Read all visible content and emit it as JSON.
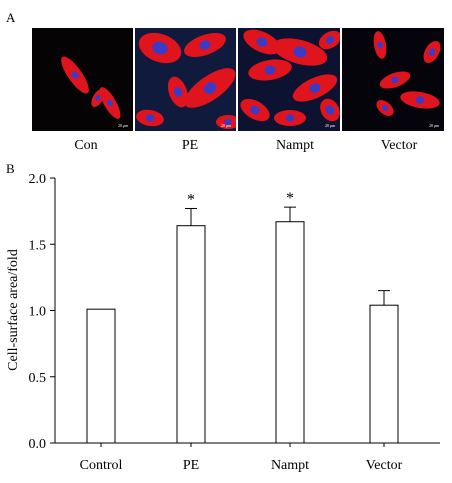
{
  "panel_a": {
    "label": "A",
    "scale_bar_text": "20 μm",
    "images": [
      {
        "caption": "Con",
        "background": "#050303",
        "cell_color": "#e0141c",
        "nucleus_color": "#3a3cc8"
      },
      {
        "caption": "PE",
        "background": "#101a3c",
        "cell_color": "#e0141c",
        "nucleus_color": "#3a3cc8"
      },
      {
        "caption": "Nampt",
        "background": "#0c1230",
        "cell_color": "#e0141c",
        "nucleus_color": "#3a3cc8"
      },
      {
        "caption": "Vector",
        "background": "#05040a",
        "cell_color": "#e0141c",
        "nucleus_color": "#3a3cc8"
      }
    ]
  },
  "panel_b": {
    "label": "B"
  },
  "chart_data": {
    "type": "bar",
    "categories": [
      "Control",
      "PE",
      "Nampt",
      "Vector"
    ],
    "values": [
      1.01,
      1.64,
      1.67,
      1.04
    ],
    "errors": [
      0,
      0.13,
      0.11,
      0.11
    ],
    "significance": [
      "",
      "*",
      "*",
      ""
    ],
    "ylabel": "Cell-surface area/fold",
    "xlabel": "",
    "ylim": [
      0,
      2.0
    ],
    "yticks": [
      0.0,
      0.5,
      1.0,
      1.5,
      2.0
    ],
    "ytick_labels": [
      "0.0",
      "0.5",
      "1.0",
      "1.5",
      "2.0"
    ],
    "bar_fill": "#ffffff",
    "bar_stroke": "#000000",
    "grid": false
  }
}
